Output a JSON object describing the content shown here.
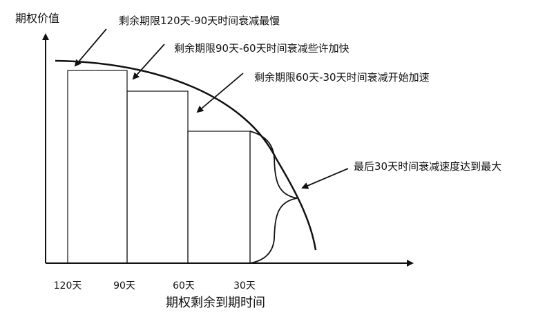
{
  "diagram": {
    "y_axis_label": "期权价值",
    "x_axis_label": "期权剩余到期时间",
    "ticks": [
      "120天",
      "90天",
      "60天",
      "30天"
    ],
    "annotations": [
      "剩余期限120天-90天时间衰减最慢",
      "剩余期限90天-60天时间衰减些许加快",
      "剩余期限60天-30天时间衰减开始加速",
      "最后30天时间衰减速度达到最大"
    ]
  }
}
